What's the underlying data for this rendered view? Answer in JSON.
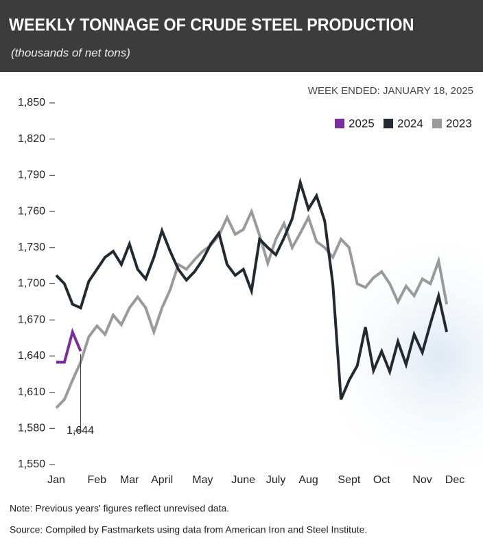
{
  "chart_data": {
    "type": "line",
    "title": "WEEKLY TONNAGE OF CRUDE STEEL PRODUCTION",
    "subtitle": "(thousands of net tons)",
    "annotation": "WEEK ENDED: JANUARY 18, 2025",
    "note": "Note: Previous years' figures reflect unrevised data.",
    "source": "Source: Compiled by Fastmarkets using data from American Iron and Steel Institute.",
    "categories": [
      "Jan",
      null,
      null,
      null,
      null,
      "Feb",
      null,
      null,
      null,
      "Mar",
      null,
      null,
      null,
      "April",
      null,
      null,
      null,
      null,
      "May",
      null,
      null,
      null,
      null,
      "June",
      null,
      null,
      null,
      "July",
      null,
      null,
      null,
      "Aug",
      null,
      null,
      null,
      null,
      "Sept",
      null,
      null,
      null,
      "Oct",
      null,
      null,
      null,
      null,
      "Nov",
      null,
      null,
      null,
      "Dec"
    ],
    "ylim": [
      1550,
      1850
    ],
    "yticks": [
      {
        "value": 1550,
        "label": "1,550"
      },
      {
        "value": 1580,
        "label": "1,580"
      },
      {
        "value": 1610,
        "label": "1,610"
      },
      {
        "value": 1640,
        "label": "1,640"
      },
      {
        "value": 1670,
        "label": "1,670"
      },
      {
        "value": 1700,
        "label": "1,700"
      },
      {
        "value": 1730,
        "label": "1,730"
      },
      {
        "value": 1760,
        "label": "1,760"
      },
      {
        "value": 1790,
        "label": "1,790"
      },
      {
        "value": 1820,
        "label": "1,820"
      },
      {
        "value": 1850,
        "label": "1,850"
      }
    ],
    "legend": "top-right",
    "series": [
      {
        "name": "2025",
        "color": "#7b2d9e",
        "values": [
          1635,
          1635,
          1660,
          1644,
          null,
          null,
          null,
          null,
          null,
          null,
          null,
          null,
          null,
          null,
          null,
          null,
          null,
          null,
          null,
          null,
          null,
          null,
          null,
          null,
          null,
          null,
          null,
          null,
          null,
          null,
          null,
          null,
          null,
          null,
          null,
          null,
          null,
          null,
          null,
          null,
          null,
          null,
          null,
          null,
          null,
          null,
          null,
          null,
          null,
          null
        ],
        "value_labels": [
          null,
          null,
          null,
          "1,644",
          null,
          null,
          null,
          null,
          null,
          null,
          null,
          null,
          null,
          null,
          null,
          null,
          null,
          null,
          null,
          null,
          null,
          null,
          null,
          null,
          null,
          null,
          null,
          null,
          null,
          null,
          null,
          null,
          null,
          null,
          null,
          null,
          null,
          null,
          null,
          null,
          null,
          null,
          null,
          null,
          null,
          null,
          null,
          null,
          null,
          null
        ]
      },
      {
        "name": "2024",
        "color": "#222a30",
        "values": [
          1707,
          1700,
          1683,
          1680,
          1702,
          1712,
          1722,
          1727,
          1716,
          1733,
          1712,
          1704,
          1722,
          1744,
          1727,
          1712,
          1703,
          1710,
          1720,
          1733,
          1742,
          1716,
          1707,
          1712,
          1694,
          1737,
          1730,
          1724,
          1738,
          1754,
          1784,
          1762,
          1773,
          1752,
          1700,
          1604,
          1620,
          1632,
          1664,
          1628,
          1644,
          1627,
          1652,
          1633,
          1658,
          1643,
          1667,
          1690,
          1660,
          null
        ]
      },
      {
        "name": "2023",
        "color": "#9a9a9a",
        "values": [
          1597,
          1604,
          1620,
          1635,
          1656,
          1665,
          1658,
          1674,
          1666,
          1680,
          1689,
          1680,
          1660,
          1680,
          1695,
          1716,
          1712,
          1720,
          1727,
          1732,
          1740,
          1755,
          1741,
          1745,
          1760,
          1740,
          1717,
          1737,
          1750,
          1730,
          1742,
          1755,
          1735,
          1730,
          1722,
          1737,
          1730,
          1700,
          1697,
          1705,
          1710,
          1700,
          1685,
          1698,
          1690,
          1704,
          1700,
          1719,
          1683,
          null
        ]
      }
    ]
  }
}
